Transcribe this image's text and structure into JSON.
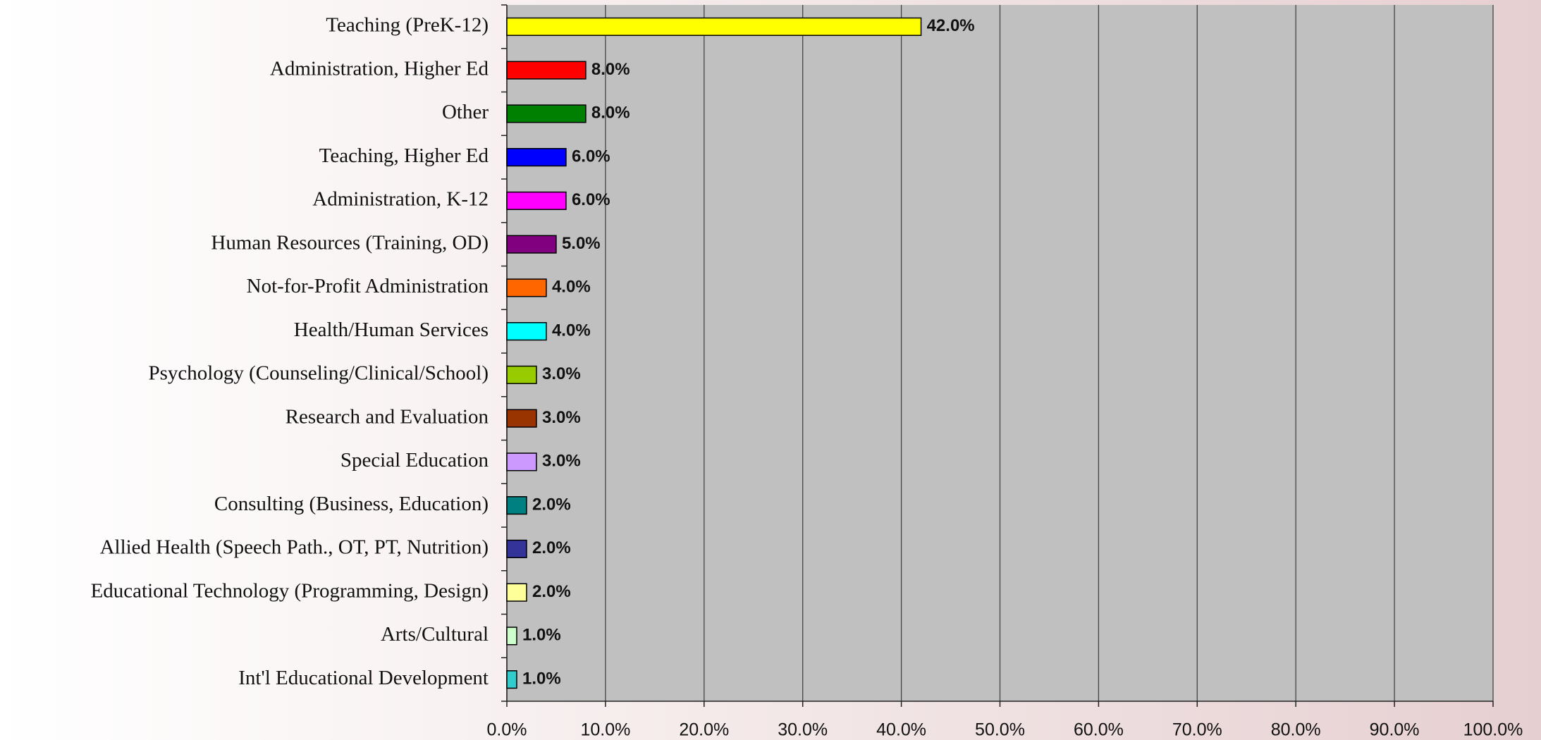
{
  "chart_data": {
    "type": "bar",
    "orientation": "horizontal",
    "categories": [
      "Teaching (PreK-12)",
      "Administration, Higher Ed",
      "Other",
      "Teaching, Higher Ed",
      "Administration, K-12",
      "Human Resources (Training, OD)",
      "Not-for-Profit Administration",
      "Health/Human Services",
      "Psychology (Counseling/Clinical/School)",
      "Research and Evaluation",
      "Special Education",
      "Consulting (Business, Education)",
      "Allied Health (Speech Path., OT, PT, Nutrition)",
      "Educational Technology (Programming, Design)",
      "Arts/Cultural",
      "Int'l Educational Development"
    ],
    "values": [
      42,
      8,
      8,
      6,
      6,
      5,
      4,
      4,
      3,
      3,
      3,
      2,
      2,
      2,
      1,
      1
    ],
    "value_labels": [
      "42.0%",
      "8.0%",
      "8.0%",
      "6.0%",
      "6.0%",
      "5.0%",
      "4.0%",
      "4.0%",
      "3.0%",
      "3.0%",
      "3.0%",
      "2.0%",
      "2.0%",
      "2.0%",
      "1.0%",
      "1.0%"
    ],
    "colors": [
      "#ffff00",
      "#ff0000",
      "#008000",
      "#0000ff",
      "#ff00ff",
      "#800080",
      "#ff6600",
      "#00ffff",
      "#99cc00",
      "#993300",
      "#cc99ff",
      "#008080",
      "#333399",
      "#ffff99",
      "#ccffcc",
      "#33cccc"
    ],
    "xlim": [
      0,
      100
    ],
    "xticks": [
      {
        "value": 0,
        "label": "0.0%"
      },
      {
        "value": 10,
        "label": "10.0%"
      },
      {
        "value": 20,
        "label": "20.0%"
      },
      {
        "value": 30,
        "label": "30.0%"
      },
      {
        "value": 40,
        "label": "40.0%"
      },
      {
        "value": 50,
        "label": "50.0%"
      },
      {
        "value": 60,
        "label": "60.0%"
      },
      {
        "value": 70,
        "label": "70.0%"
      },
      {
        "value": 80,
        "label": "80.0%"
      },
      {
        "value": 90,
        "label": "90.0%"
      },
      {
        "value": 100,
        "label": "100.0%"
      }
    ],
    "grid": true
  }
}
